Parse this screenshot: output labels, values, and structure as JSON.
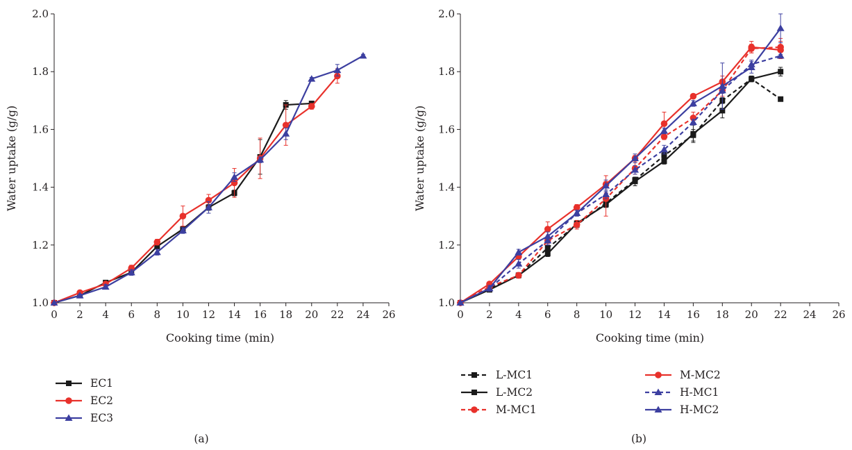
{
  "chart_data": [
    {
      "type": "line",
      "panel_label": "(a)",
      "xlabel": "Cooking time (min)",
      "ylabel": "Water uptake (g/g)",
      "xlim": [
        0,
        26
      ],
      "ylim": [
        1.0,
        2.0
      ],
      "xticks": [
        0,
        2,
        4,
        6,
        8,
        10,
        12,
        14,
        16,
        18,
        20,
        22,
        24,
        26
      ],
      "yticks": [
        1.0,
        1.2,
        1.4,
        1.6,
        1.8,
        2.0
      ],
      "grid": false,
      "legend_position": "bottom-left",
      "series": [
        {
          "name": "EC1",
          "color": "#1a1a1a",
          "marker": "square",
          "dash": false,
          "x": [
            0,
            2,
            4,
            6,
            8,
            10,
            12,
            14,
            16,
            18,
            20
          ],
          "y": [
            1.0,
            1.025,
            1.07,
            1.105,
            1.195,
            1.255,
            1.33,
            1.38,
            1.505,
            1.685,
            1.69
          ],
          "err": [
            0,
            0.005,
            0.005,
            0.008,
            0.01,
            0.01,
            0.01,
            0.01,
            0.06,
            0.015,
            0.005
          ]
        },
        {
          "name": "EC2",
          "color": "#e8312b",
          "marker": "circle",
          "dash": false,
          "x": [
            0,
            2,
            4,
            6,
            8,
            10,
            12,
            14,
            16,
            18,
            20,
            22
          ],
          "y": [
            1.0,
            1.035,
            1.065,
            1.12,
            1.21,
            1.3,
            1.355,
            1.415,
            1.5,
            1.615,
            1.68,
            1.785
          ],
          "err": [
            0,
            0.008,
            0.008,
            0.01,
            0.01,
            0.035,
            0.02,
            0.05,
            0.07,
            0.07,
            0.01,
            0.025
          ]
        },
        {
          "name": "EC3",
          "color": "#3c3fa0",
          "marker": "triangle",
          "dash": false,
          "x": [
            0,
            2,
            4,
            6,
            8,
            10,
            12,
            14,
            16,
            18,
            20,
            22,
            24
          ],
          "y": [
            1.0,
            1.025,
            1.055,
            1.105,
            1.175,
            1.25,
            1.33,
            1.435,
            1.495,
            1.585,
            1.775,
            1.805,
            1.855
          ],
          "err": [
            0,
            0.005,
            0.008,
            0.01,
            0.01,
            0.01,
            0.02,
            0.015,
            0.01,
            0.02,
            0.005,
            0.02,
            0.005
          ]
        }
      ]
    },
    {
      "type": "line",
      "panel_label": "(b)",
      "xlabel": "Cooking time (min)",
      "ylabel": "Water uptake (g/g)",
      "xlim": [
        0,
        26
      ],
      "ylim": [
        1.0,
        2.0
      ],
      "xticks": [
        0,
        2,
        4,
        6,
        8,
        10,
        12,
        14,
        16,
        18,
        20,
        22,
        24,
        26
      ],
      "yticks": [
        1.0,
        1.2,
        1.4,
        1.6,
        1.8,
        2.0
      ],
      "grid": false,
      "legend_position": "bottom",
      "series": [
        {
          "name": "L-MC1",
          "color": "#1a1a1a",
          "marker": "square",
          "dash": true,
          "x": [
            0,
            2,
            4,
            6,
            8,
            10,
            12,
            14,
            16,
            18,
            20,
            22
          ],
          "y": [
            1.0,
            1.05,
            1.095,
            1.19,
            1.27,
            1.345,
            1.425,
            1.51,
            1.58,
            1.7,
            1.775,
            1.705
          ],
          "err": [
            0,
            0.005,
            0.005,
            0.01,
            0.01,
            0.01,
            0.01,
            0.01,
            0.02,
            0.01,
            0.01,
            0.005
          ]
        },
        {
          "name": "L-MC2",
          "color": "#1a1a1a",
          "marker": "square",
          "dash": false,
          "x": [
            0,
            2,
            4,
            6,
            8,
            10,
            12,
            14,
            16,
            18,
            20,
            22
          ],
          "y": [
            1.0,
            1.045,
            1.095,
            1.17,
            1.275,
            1.34,
            1.42,
            1.49,
            1.585,
            1.665,
            1.775,
            1.8
          ],
          "err": [
            0,
            0.005,
            0.005,
            0.01,
            0.01,
            0.01,
            0.015,
            0.01,
            0.03,
            0.025,
            0.01,
            0.015
          ]
        },
        {
          "name": "M-MC1",
          "color": "#e8312b",
          "marker": "circle",
          "dash": true,
          "x": [
            0,
            2,
            4,
            6,
            8,
            10,
            12,
            14,
            16,
            18,
            20,
            22
          ],
          "y": [
            1.0,
            1.055,
            1.095,
            1.215,
            1.27,
            1.36,
            1.465,
            1.575,
            1.64,
            1.735,
            1.88,
            1.885
          ],
          "err": [
            0,
            0.005,
            0.01,
            0.01,
            0.015,
            0.06,
            0.02,
            0.01,
            0.02,
            0.02,
            0.015,
            0.03
          ]
        },
        {
          "name": "M-MC2",
          "color": "#e8312b",
          "marker": "circle",
          "dash": false,
          "x": [
            0,
            2,
            4,
            6,
            8,
            10,
            12,
            14,
            16,
            18,
            20,
            22
          ],
          "y": [
            1.0,
            1.065,
            1.16,
            1.255,
            1.33,
            1.41,
            1.5,
            1.62,
            1.715,
            1.765,
            1.885,
            1.875
          ],
          "err": [
            0,
            0.005,
            0.01,
            0.025,
            0.01,
            0.03,
            0.01,
            0.04,
            0.005,
            0.02,
            0.02,
            0.03
          ]
        },
        {
          "name": "H-MC1",
          "color": "#3c3fa0",
          "marker": "triangle",
          "dash": true,
          "x": [
            0,
            2,
            4,
            6,
            8,
            10,
            12,
            14,
            16,
            18,
            20,
            22
          ],
          "y": [
            1.0,
            1.05,
            1.135,
            1.215,
            1.31,
            1.375,
            1.46,
            1.53,
            1.625,
            1.735,
            1.825,
            1.855
          ],
          "err": [
            0,
            0.005,
            0.015,
            0.015,
            0.01,
            0.015,
            0.015,
            0.015,
            0.01,
            0.01,
            0.015,
            0.005
          ]
        },
        {
          "name": "H-MC2",
          "color": "#3c3fa0",
          "marker": "triangle",
          "dash": false,
          "x": [
            0,
            2,
            4,
            6,
            8,
            10,
            12,
            14,
            16,
            18,
            20,
            22
          ],
          "y": [
            1.0,
            1.05,
            1.175,
            1.23,
            1.31,
            1.405,
            1.5,
            1.595,
            1.69,
            1.75,
            1.815,
            1.95
          ],
          "err": [
            0,
            0.01,
            0.01,
            0.015,
            0.01,
            0.02,
            0.015,
            0.01,
            0.01,
            0.08,
            0.02,
            0.05
          ]
        }
      ]
    }
  ]
}
